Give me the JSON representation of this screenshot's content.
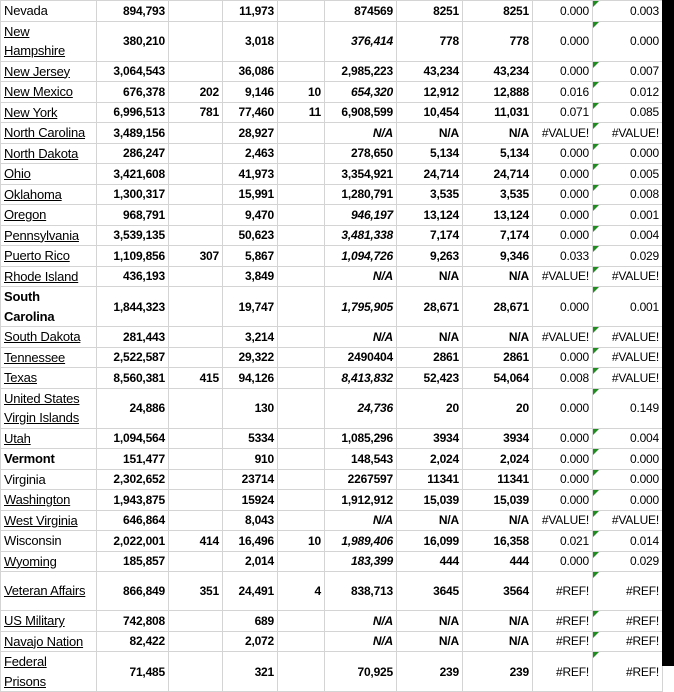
{
  "colors": {
    "grid": "#d4d4d4",
    "error_indicator": "#1e8c1e"
  },
  "rows": [
    {
      "name": "Nevada",
      "style": "plain",
      "cells": [
        "894,793",
        "",
        "11,973",
        "",
        "874569",
        "8251",
        "8251",
        "0.000",
        "0.003"
      ],
      "italic_f": false,
      "tall": false
    },
    {
      "name": "New Hampshire",
      "style": "link",
      "cells": [
        "380,210",
        "",
        "3,018",
        "",
        "376,414",
        "778",
        "778",
        "0.000",
        "0.000"
      ],
      "italic_f": true,
      "tall": true
    },
    {
      "name": "New Jersey",
      "style": "link",
      "cells": [
        "3,064,543",
        "",
        "36,086",
        "",
        "2,985,223",
        "43,234",
        "43,234",
        "0.000",
        "0.007"
      ],
      "italic_f": false,
      "tall": false
    },
    {
      "name": "New Mexico",
      "style": "link",
      "cells": [
        "676,378",
        "202",
        "9,146",
        "10",
        "654,320",
        "12,912",
        "12,888",
        "0.016",
        "0.012"
      ],
      "italic_f": true,
      "tall": false
    },
    {
      "name": "New York",
      "style": "link",
      "cells": [
        "6,996,513",
        "781",
        "77,460",
        "11",
        "6,908,599",
        "10,454",
        "11,031",
        "0.071",
        "0.085"
      ],
      "italic_f": false,
      "tall": false
    },
    {
      "name": "North Carolina",
      "style": "link",
      "cells": [
        "3,489,156",
        "",
        "28,927",
        "",
        "N/A",
        "N/A",
        "N/A",
        "#VALUE!",
        "#VALUE!"
      ],
      "italic_f": true,
      "tall": false
    },
    {
      "name": "North Dakota",
      "style": "link",
      "cells": [
        "286,247",
        "",
        "2,463",
        "",
        "278,650",
        "5,134",
        "5,134",
        "0.000",
        "0.000"
      ],
      "italic_f": false,
      "tall": false
    },
    {
      "name": "Ohio",
      "style": "link",
      "cells": [
        "3,421,608",
        "",
        "41,973",
        "",
        "3,354,921",
        "24,714",
        "24,714",
        "0.000",
        "0.005"
      ],
      "italic_f": false,
      "tall": false
    },
    {
      "name": "Oklahoma",
      "style": "link",
      "cells": [
        "1,300,317",
        "",
        "15,991",
        "",
        "1,280,791",
        "3,535",
        "3,535",
        "0.000",
        "0.008"
      ],
      "italic_f": false,
      "tall": false
    },
    {
      "name": "Oregon",
      "style": "link",
      "cells": [
        "968,791",
        "",
        "9,470",
        "",
        "946,197",
        "13,124",
        "13,124",
        "0.000",
        "0.001"
      ],
      "italic_f": true,
      "tall": false
    },
    {
      "name": "Pennsylvania",
      "style": "link",
      "cells": [
        "3,539,135",
        "",
        "50,623",
        "",
        "3,481,338",
        "7,174",
        "7,174",
        "0.000",
        "0.004"
      ],
      "italic_f": true,
      "tall": false
    },
    {
      "name": "Puerto Rico",
      "style": "link",
      "cells": [
        "1,109,856",
        "307",
        "5,867",
        "",
        "1,094,726",
        "9,263",
        "9,346",
        "0.033",
        "0.029"
      ],
      "italic_f": true,
      "tall": false
    },
    {
      "name": "Rhode Island",
      "style": "link",
      "cells": [
        "436,193",
        "",
        "3,849",
        "",
        "N/A",
        "N/A",
        "N/A",
        "#VALUE!",
        "#VALUE!"
      ],
      "italic_f": true,
      "tall": false
    },
    {
      "name": "South Carolina",
      "style": "bold",
      "cells": [
        "1,844,323",
        "",
        "19,747",
        "",
        "1,795,905",
        "28,671",
        "28,671",
        "0.000",
        "0.001"
      ],
      "italic_f": true,
      "tall": false
    },
    {
      "name": "South Dakota",
      "style": "link",
      "cells": [
        "281,443",
        "",
        "3,214",
        "",
        "N/A",
        "N/A",
        "N/A",
        "#VALUE!",
        "#VALUE!"
      ],
      "italic_f": true,
      "tall": false
    },
    {
      "name": "Tennessee",
      "style": "link",
      "cells": [
        "2,522,587",
        "",
        "29,322",
        "",
        "2490404",
        "2861",
        "2861",
        "0.000",
        "#VALUE!"
      ],
      "italic_f": false,
      "tall": false
    },
    {
      "name": "Texas",
      "style": "link",
      "cells": [
        "8,560,381",
        "415",
        "94,126",
        "",
        "8,413,832",
        "52,423",
        "54,064",
        "0.008",
        "#VALUE!"
      ],
      "italic_f": true,
      "tall": false
    },
    {
      "name": "United States Virgin Islands",
      "style": "link",
      "cells": [
        "24,886",
        "",
        "130",
        "",
        "24,736",
        "20",
        "20",
        "0.000",
        "0.149"
      ],
      "italic_f": true,
      "tall": true
    },
    {
      "name": "Utah",
      "style": "link",
      "cells": [
        "1,094,564",
        "",
        "5334",
        "",
        "1,085,296",
        "3934",
        "3934",
        "0.000",
        "0.004"
      ],
      "italic_f": false,
      "tall": false
    },
    {
      "name": "Vermont",
      "style": "bold",
      "cells": [
        "151,477",
        "",
        "910",
        "",
        "148,543",
        "2,024",
        "2,024",
        "0.000",
        "0.000"
      ],
      "italic_f": false,
      "tall": false
    },
    {
      "name": "Virginia",
      "style": "plain",
      "cells": [
        "2,302,652",
        "",
        "23714",
        "",
        "2267597",
        "11341",
        "11341",
        "0.000",
        "0.000"
      ],
      "italic_f": false,
      "tall": false
    },
    {
      "name": "Washington",
      "style": "link",
      "cells": [
        "1,943,875",
        "",
        "15924",
        "",
        "1,912,912",
        "15,039",
        "15,039",
        "0.000",
        "0.000"
      ],
      "italic_f": false,
      "tall": false
    },
    {
      "name": "West Virginia",
      "style": "link",
      "cells": [
        "646,864",
        "",
        "8,043",
        "",
        "N/A",
        "N/A",
        "N/A",
        "#VALUE!",
        "#VALUE!"
      ],
      "italic_f": true,
      "tall": false
    },
    {
      "name": "Wisconsin",
      "style": "plain",
      "cells": [
        "2,022,001",
        "414",
        "16,496",
        "10",
        "1,989,406",
        "16,099",
        "16,358",
        "0.021",
        "0.014"
      ],
      "italic_f": true,
      "tall": false
    },
    {
      "name": "Wyoming",
      "style": "link",
      "cells": [
        "185,857",
        "",
        "2,014",
        "",
        "183,399",
        "444",
        "444",
        "0.000",
        "0.029"
      ],
      "italic_f": true,
      "tall": false
    },
    {
      "name": "Veteran Affairs",
      "style": "link",
      "cells": [
        "866,849",
        "351",
        "24,491",
        "4",
        "838,713",
        "3645",
        "3564",
        "#REF!",
        "#REF!"
      ],
      "italic_f": false,
      "tall": true
    },
    {
      "name": "US Military",
      "style": "link",
      "cells": [
        "742,808",
        "",
        "689",
        "",
        "N/A",
        "N/A",
        "N/A",
        "#REF!",
        "#REF!"
      ],
      "italic_f": true,
      "tall": false
    },
    {
      "name": "Navajo Nation",
      "style": "link",
      "cells": [
        "82,422",
        "",
        "2,072",
        "",
        "N/A",
        "N/A",
        "N/A",
        "#REF!",
        "#REF!"
      ],
      "italic_f": true,
      "tall": false
    },
    {
      "name": "Federal Prisons",
      "style": "link",
      "cells": [
        "71,485",
        "",
        "321",
        "",
        "70,925",
        "239",
        "239",
        "#REF!",
        "#REF!"
      ],
      "italic_f": false,
      "tall": true
    }
  ]
}
